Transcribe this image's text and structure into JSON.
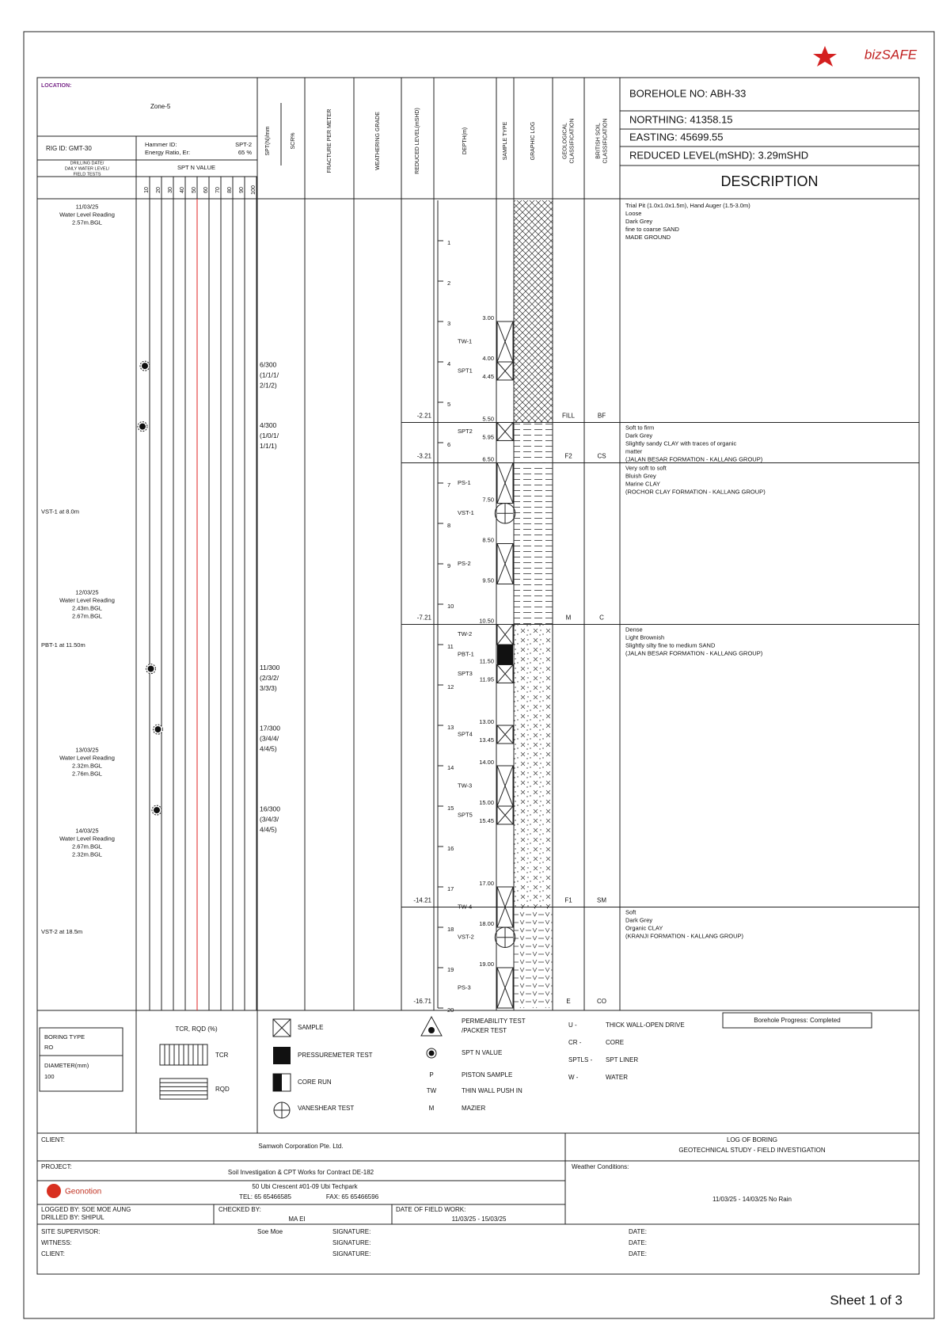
{
  "logo": {
    "text": "bizSAFE"
  },
  "header": {
    "location_label": "LOCATION:",
    "location": "Zone-5",
    "rig": "RIG ID: GMT-30",
    "hammer": [
      "Hammer ID:",
      "Energy Ratio, Er:"
    ],
    "hammer_values": [
      "SPT-2",
      "65 %"
    ],
    "drilling": [
      "DRILLING DATE/",
      "DAILY WATER LEVEL/",
      "FIELD TESTS"
    ],
    "spt_n_value": "SPT N VALUE",
    "columns": [
      [
        "SPT(N)/mm"
      ],
      [
        "SCR%"
      ],
      [
        "FRACTURE PER METER"
      ],
      [
        "WEATHERING GRADE"
      ],
      [
        "REDUCED LEVEL(mSHD)"
      ],
      [
        "DEPTH(m)"
      ],
      [
        "SAMPLE TYPE"
      ],
      [
        "GRAPHIC LOG"
      ],
      [
        "GEOLOGICAL",
        "CLASSIFICATION"
      ],
      [
        "BRITISH SOIL",
        "CLASSIFICATION"
      ]
    ],
    "borehole_no": "BOREHOLE NO: ABH-33",
    "northing": "NORTHING: 41358.15",
    "easting": "EASTING: 45699.55",
    "reduced_level": "REDUCED LEVEL(mSHD): 3.29mSHD",
    "description": "DESCRIPTION"
  },
  "spt_scale": {
    "xlim": [
      0,
      100
    ],
    "xticks": [
      10,
      20,
      30,
      40,
      50,
      60,
      70,
      80,
      90,
      100
    ],
    "highlight": 50,
    "highlight_color": "#e02020"
  },
  "depth_scale": {
    "ylim": [
      0,
      20
    ],
    "yticks": [
      1,
      2,
      3,
      4,
      5,
      6,
      7,
      8,
      9,
      10,
      11,
      12,
      13,
      14,
      15,
      16,
      17,
      18,
      19,
      20
    ]
  },
  "notes": [
    [
      "11/03/25",
      "Water Level Reading",
      "2.57m.BGL"
    ],
    [
      "VST-1 at 8.0m"
    ],
    [
      "12/03/25",
      "Water Level Reading",
      "2.43m.BGL",
      "2.67m.BGL"
    ],
    [
      "PBT-1 at 11.50m"
    ],
    [
      "13/03/25",
      "Water Level Reading",
      "2.32m.BGL",
      "2.76m.BGL"
    ],
    [
      "14/03/25",
      "Water Level Reading",
      "2.67m.BGL",
      "2.32m.BGL"
    ],
    [
      "VST-2 at 18.5m"
    ]
  ],
  "spt_tests": [
    {
      "depth": 4.0,
      "n": 6,
      "text": [
        "6/300",
        "(1/1/1/",
        "2/1/2)"
      ]
    },
    {
      "depth": 5.5,
      "n": 4,
      "text": [
        "4/300",
        "(1/0/1/",
        "1/1/1)"
      ]
    },
    {
      "depth": 11.5,
      "n": 11,
      "text": [
        "11/300",
        "(2/3/2/",
        "3/3/3)"
      ]
    },
    {
      "depth": 13.0,
      "n": 17,
      "text": [
        "17/300",
        "(3/4/4/",
        "4/4/5)"
      ]
    },
    {
      "depth": 15.0,
      "n": 16,
      "text": [
        "16/300",
        "(3/4/3/",
        "4/4/5)"
      ]
    }
  ],
  "samples": [
    {
      "label": "TW-1",
      "kind": "x",
      "top": {
        "value": 3,
        "label": "3.00"
      },
      "bottom": {
        "value": 4,
        "label": "4.00"
      }
    },
    {
      "label": "SPT1",
      "kind": "x",
      "top": 4,
      "bottom": {
        "value": 4.45,
        "label": "4.45"
      }
    },
    {
      "label": "SPT2",
      "kind": "x",
      "top": {
        "value": 5.5,
        "label": "5.50"
      },
      "bottom": {
        "value": 5.95,
        "label": "5.95"
      }
    },
    {
      "label": "PS-1",
      "kind": "x",
      "top": {
        "value": 6.5,
        "label": "6.50"
      },
      "bottom": {
        "value": 7.5,
        "label": "7.50"
      }
    },
    {
      "label": "VST-1",
      "kind": "vane",
      "top": 7.5,
      "bottom": 8.0
    },
    {
      "label": "PS-2",
      "kind": "x",
      "top": {
        "value": 8.5,
        "label": "8.50"
      },
      "bottom": {
        "value": 9.5,
        "label": "9.50"
      }
    },
    {
      "label": "TW-2",
      "kind": "x",
      "top": {
        "value": 10.5,
        "label": "10.50"
      },
      "bottom": 11.0
    },
    {
      "label": "PBT-1",
      "kind": "pbt",
      "top": 11.0,
      "bottom": {
        "value": 11.5,
        "label": "11.50"
      }
    },
    {
      "label": "SPT3",
      "kind": "x",
      "top": 11.5,
      "bottom": {
        "value": 11.95,
        "label": "11.95"
      }
    },
    {
      "label": "SPT4",
      "kind": "x",
      "top": {
        "value": 13,
        "label": "13.00"
      },
      "bottom": {
        "value": 13.45,
        "label": "13.45"
      }
    },
    {
      "label": "TW-3",
      "kind": "x",
      "top": {
        "value": 14,
        "label": "14.00"
      },
      "bottom": 15
    },
    {
      "label": "SPT5",
      "kind": "x",
      "top": {
        "value": 15,
        "label": "15.00"
      },
      "bottom": {
        "value": 15.45,
        "label": "15.45"
      }
    },
    {
      "label": "TW-4",
      "kind": "x",
      "top": {
        "value": 17,
        "label": "17.00"
      },
      "bottom": {
        "value": 18,
        "label": "18.00"
      }
    },
    {
      "label": "VST-2",
      "kind": "vane",
      "top": 18,
      "bottom": 18.5
    },
    {
      "label": "PS-3",
      "kind": "x",
      "top": {
        "value": 19,
        "label": "19.00"
      },
      "bottom": 20
    }
  ],
  "strata": [
    {
      "bottom": 5.5,
      "rl": -2.21,
      "geo": "FILL",
      "bs": "BF",
      "pattern": "cross",
      "description": [
        "Trial Pit (1.0x1.0x1.5m), Hand Auger (1.5-3.0m)",
        "Loose",
        "Dark Grey",
        "fine to coarse SAND",
        "MADE GROUND"
      ]
    },
    {
      "bottom": 6.5,
      "rl": -3.21,
      "geo": "F2",
      "bs": "CS",
      "pattern": "clay",
      "description": [
        "Soft to firm",
        "Dark Grey",
        "Slightly sandy CLAY with traces of organic",
        "matter",
        "(JALAN BESAR FORMATION - KALLANG GROUP)"
      ]
    },
    {
      "bottom": 10.5,
      "rl": -7.21,
      "geo": "M",
      "bs": "C",
      "pattern": "clay",
      "description": [
        "Very soft to soft",
        "Bluish Grey",
        "Marine CLAY",
        "(ROCHOR CLAY FORMATION - KALLANG GROUP)"
      ]
    },
    {
      "bottom": 17.5,
      "rl": -14.21,
      "geo": "F1",
      "bs": "SM",
      "pattern": "sand",
      "description": [
        "Dense",
        "Light Brownish",
        "Slightly silty fine to medium SAND",
        "(JALAN BESAR FORMATION - KALLANG GROUP)"
      ]
    },
    {
      "bottom": 20,
      "rl": -16.71,
      "geo": "E",
      "bs": "CO",
      "pattern": "organic",
      "description": [
        "Soft",
        "Dark Grey",
        "Organic CLAY",
        "(KRANJI FORMATION - KALLANG GROUP)"
      ]
    }
  ],
  "legend": {
    "boring_type": "BORING TYPE",
    "boring_value": "RO",
    "diameter": "DIAMETER(mm)",
    "diameter_value": "100",
    "tcr_rqd": "TCR, RQD (%)",
    "tcr": "TCR",
    "rqd": "RQD",
    "sample": "SAMPLE",
    "pressuremeter": "PRESSUREMETER TEST",
    "core_run": "CORE RUN",
    "vane": "VANESHEAR TEST",
    "permeability": [
      "PERMEABILITY TEST",
      "/PACKER TEST"
    ],
    "spt": "SPT N VALUE",
    "piston": [
      "P",
      "PISTON SAMPLE"
    ],
    "thin_wall": [
      "TW",
      "THIN WALL PUSH IN"
    ],
    "mazier": [
      "M",
      "MAZIER"
    ],
    "abbreviations": [
      [
        "U -",
        "THICK WALL-OPEN DRIVE"
      ],
      [
        "CR -",
        "CORE"
      ],
      [
        "SPTLS -",
        "SPT LINER"
      ],
      [
        "W -",
        "WATER"
      ]
    ],
    "progress": "Borehole Progress: Completed"
  },
  "footer": {
    "client_label": "CLIENT:",
    "client": "Samwoh Corporation Pte. Ltd.",
    "log_title": "LOG OF BORING",
    "study": "GEOTECHNICAL STUDY - FIELD INVESTIGATION",
    "project_label": "PROJECT:",
    "project": "Soil Investigation & CPT Works for Contract DE-182",
    "weather_label": "Weather Conditions:",
    "weather": "11/03/25 - 14/03/25 No Rain",
    "company": "Geonotion",
    "address": "50 Ubi Crescent #01-09 Ubi Techpark",
    "tel": "TEL: 65 65466585",
    "fax": "FAX: 65 65466596",
    "logged_by": "LOGGED BY: SOE MOE AUNG",
    "drilled_by": "DRILLED BY: SHIPUL",
    "checked_by_label": "CHECKED BY:",
    "checked_by": "MA EI",
    "field_work_label": "DATE OF FIELD WORK:",
    "field_work": "11/03/25 - 15/03/25",
    "signoff": [
      {
        "role": "SITE SUPERVISOR:",
        "name": "Soe Moe",
        "signature": "SIGNATURE:",
        "date": "DATE:"
      },
      {
        "role": "WITNESS:",
        "signature": "SIGNATURE:",
        "date": "DATE:"
      },
      {
        "role": "CLIENT:",
        "signature": "SIGNATURE:",
        "date": "DATE:"
      }
    ]
  },
  "sheet": "Sheet 1 of 3"
}
